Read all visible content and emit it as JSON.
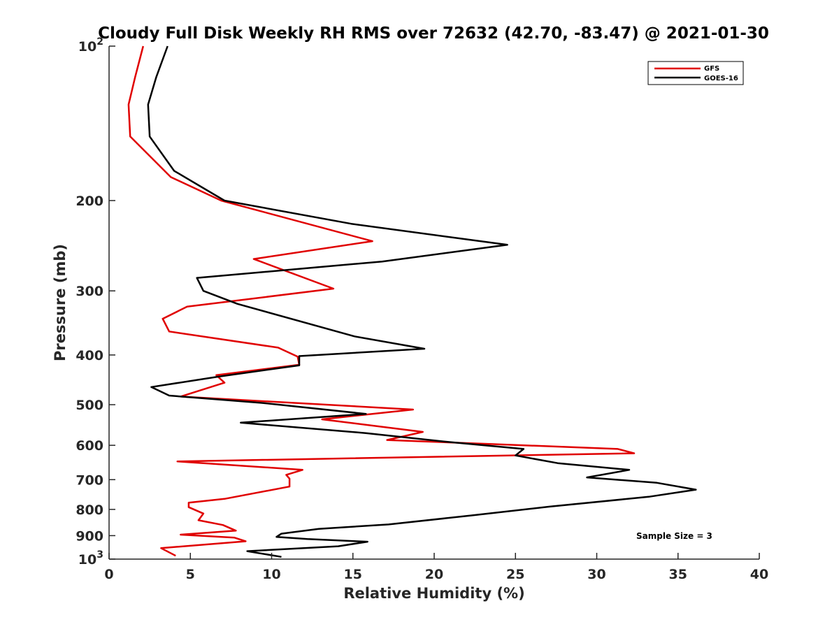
{
  "chart_data": {
    "type": "line",
    "title": "Cloudy Full Disk Weekly RH RMS over 72632 (42.70, -83.47) @ 2021-01-30",
    "xlabel": "Relative Humidity (%)",
    "ylabel": "Pressure (mb)",
    "xlim": [
      0,
      40
    ],
    "ylim": [
      100,
      1000
    ],
    "y_scale": "log",
    "y_reversed": true,
    "grid": false,
    "legend_position": "top-right",
    "x_ticks": [
      0,
      5,
      10,
      15,
      20,
      25,
      30,
      35,
      40
    ],
    "y_ticks": [
      {
        "value": 100,
        "label": "10",
        "sup": "2"
      },
      {
        "value": 200,
        "label": "200",
        "sup": ""
      },
      {
        "value": 300,
        "label": "300",
        "sup": ""
      },
      {
        "value": 400,
        "label": "400",
        "sup": ""
      },
      {
        "value": 500,
        "label": "500",
        "sup": ""
      },
      {
        "value": 600,
        "label": "600",
        "sup": ""
      },
      {
        "value": 700,
        "label": "700",
        "sup": ""
      },
      {
        "value": 800,
        "label": "800",
        "sup": ""
      },
      {
        "value": 900,
        "label": "900",
        "sup": ""
      },
      {
        "value": 1000,
        "label": "10",
        "sup": "3"
      }
    ],
    "annotation": "Sample Size = 3",
    "series": [
      {
        "name": "GFS",
        "color": "#e00000",
        "points": [
          [
            2.1,
            100
          ],
          [
            1.6,
            115
          ],
          [
            1.2,
            130
          ],
          [
            1.3,
            150
          ],
          [
            3.8,
            180
          ],
          [
            6.9,
            200
          ],
          [
            16.2,
            240
          ],
          [
            8.9,
            260
          ],
          [
            13.8,
            297
          ],
          [
            4.8,
            322
          ],
          [
            3.3,
            340
          ],
          [
            3.7,
            360
          ],
          [
            10.4,
            387
          ],
          [
            11.6,
            403
          ],
          [
            11.7,
            418
          ],
          [
            6.6,
            438
          ],
          [
            7.1,
            453
          ],
          [
            4.4,
            482
          ],
          [
            18.7,
            511
          ],
          [
            13.1,
            534
          ],
          [
            19.3,
            565
          ],
          [
            17.1,
            586
          ],
          [
            31.3,
            610
          ],
          [
            32.3,
            622
          ],
          [
            4.2,
            645
          ],
          [
            11.9,
            670
          ],
          [
            10.9,
            685
          ],
          [
            11.1,
            697
          ],
          [
            11.1,
            722
          ],
          [
            7.1,
            763
          ],
          [
            4.9,
            776
          ],
          [
            4.9,
            792
          ],
          [
            5.8,
            815
          ],
          [
            5.5,
            840
          ],
          [
            7.0,
            858
          ],
          [
            7.8,
            880
          ],
          [
            4.4,
            896
          ],
          [
            7.7,
            908
          ],
          [
            8.4,
            923
          ],
          [
            3.2,
            952
          ],
          [
            4.1,
            985
          ]
        ]
      },
      {
        "name": "GOES-16",
        "color": "#000000",
        "points": [
          [
            3.6,
            100
          ],
          [
            2.9,
            115
          ],
          [
            2.4,
            130
          ],
          [
            2.5,
            150
          ],
          [
            4.0,
            175
          ],
          [
            7.1,
            200
          ],
          [
            14.9,
            222
          ],
          [
            24.5,
            244
          ],
          [
            16.8,
            263
          ],
          [
            5.4,
            283
          ],
          [
            5.8,
            300
          ],
          [
            7.9,
            318
          ],
          [
            15.1,
            368
          ],
          [
            19.4,
            389
          ],
          [
            11.7,
            402
          ],
          [
            11.7,
            419
          ],
          [
            6.7,
            441
          ],
          [
            2.6,
            462
          ],
          [
            3.7,
            480
          ],
          [
            9.4,
            496
          ],
          [
            15.8,
            521
          ],
          [
            8.1,
            542
          ],
          [
            15.8,
            568
          ],
          [
            20.6,
            590
          ],
          [
            25.5,
            610
          ],
          [
            25.0,
            628
          ],
          [
            27.6,
            650
          ],
          [
            32.0,
            670
          ],
          [
            29.4,
            693
          ],
          [
            33.7,
            710
          ],
          [
            36.1,
            732
          ],
          [
            33.2,
            756
          ],
          [
            27.1,
            790
          ],
          [
            22.3,
            822
          ],
          [
            17.2,
            856
          ],
          [
            12.9,
            873
          ],
          [
            10.6,
            892
          ],
          [
            10.3,
            905
          ],
          [
            12.2,
            914
          ],
          [
            15.9,
            925
          ],
          [
            14.1,
            944
          ],
          [
            8.5,
            965
          ],
          [
            10.6,
            990
          ]
        ]
      }
    ]
  }
}
